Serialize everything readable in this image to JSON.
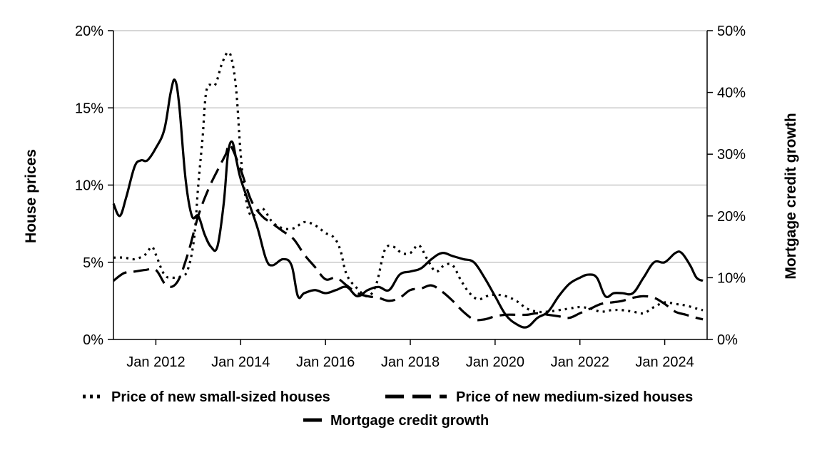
{
  "chart_data": {
    "type": "line",
    "title": "",
    "xlabel": "",
    "ylabel": "House prices",
    "y2label": "Mortgage credit growth",
    "ylim": [
      0,
      20
    ],
    "y2lim": [
      0,
      50
    ],
    "xlim": [
      2011.0,
      2025.0
    ],
    "yticks": [
      {
        "value": 0,
        "label": "0%"
      },
      {
        "value": 5,
        "label": "5%"
      },
      {
        "value": 10,
        "label": "10%"
      },
      {
        "value": 15,
        "label": "15%"
      },
      {
        "value": 20,
        "label": "20%"
      }
    ],
    "y2ticks": [
      {
        "value": 0,
        "label": "0%"
      },
      {
        "value": 10,
        "label": "10%"
      },
      {
        "value": 20,
        "label": "20%"
      },
      {
        "value": 30,
        "label": "30%"
      },
      {
        "value": 40,
        "label": "40%"
      },
      {
        "value": 50,
        "label": "50%"
      }
    ],
    "xticks": [
      {
        "value": 2012,
        "label": "Jan 2012"
      },
      {
        "value": 2014,
        "label": "Jan 2014"
      },
      {
        "value": 2016,
        "label": "Jan 2016"
      },
      {
        "value": 2018,
        "label": "Jan 2018"
      },
      {
        "value": 2020,
        "label": "Jan 2020"
      },
      {
        "value": 2022,
        "label": "Jan 2022"
      },
      {
        "value": 2024,
        "label": "Jan 2024"
      }
    ],
    "grid": true,
    "legend_position": "bottom",
    "series": [
      {
        "name": "Price of new small-sized houses",
        "axis": "left",
        "style": "dotted",
        "x": [
          2011.0,
          2011.25,
          2011.5,
          2011.75,
          2011.9,
          2012.0,
          2012.2,
          2012.4,
          2012.6,
          2012.75,
          2012.9,
          2013.0,
          2013.1,
          2013.2,
          2013.4,
          2013.55,
          2013.7,
          2013.8,
          2013.9,
          2014.0,
          2014.1,
          2014.25,
          2014.5,
          2014.75,
          2015.0,
          2015.25,
          2015.5,
          2015.75,
          2016.0,
          2016.2,
          2016.35,
          2016.5,
          2016.75,
          2017.0,
          2017.2,
          2017.4,
          2017.6,
          2017.8,
          2018.0,
          2018.2,
          2018.4,
          2018.6,
          2018.8,
          2019.0,
          2019.2,
          2019.4,
          2019.6,
          2019.8,
          2020.0,
          2020.25,
          2020.5,
          2020.75,
          2021.0,
          2021.25,
          2021.5,
          2021.75,
          2022.0,
          2022.25,
          2022.5,
          2022.75,
          2023.0,
          2023.25,
          2023.5,
          2023.75,
          2024.0,
          2024.25,
          2024.5,
          2024.75,
          2024.9
        ],
        "values": [
          5.3,
          5.3,
          5.2,
          5.5,
          6.0,
          5.5,
          4.2,
          4.0,
          4.1,
          4.5,
          6.5,
          10.0,
          13.0,
          16.2,
          16.5,
          17.8,
          18.6,
          18.0,
          16.0,
          12.0,
          9.5,
          8.0,
          8.5,
          7.6,
          7.2,
          7.2,
          7.6,
          7.4,
          6.9,
          6.6,
          5.8,
          4.2,
          3.3,
          2.8,
          3.6,
          5.8,
          6.0,
          5.6,
          5.6,
          6.1,
          5.2,
          4.4,
          4.8,
          4.8,
          3.8,
          3.0,
          2.6,
          2.8,
          2.9,
          2.8,
          2.5,
          2.0,
          1.8,
          1.8,
          1.9,
          2.0,
          2.1,
          2.0,
          1.8,
          1.9,
          1.9,
          1.8,
          1.7,
          2.1,
          2.4,
          2.3,
          2.2,
          2.0,
          1.9
        ]
      },
      {
        "name": "Price of new medium-sized houses",
        "axis": "left",
        "style": "dashed",
        "x": [
          2011.0,
          2011.25,
          2011.5,
          2011.75,
          2012.0,
          2012.25,
          2012.5,
          2012.75,
          2013.0,
          2013.25,
          2013.5,
          2013.65,
          2013.75,
          2014.0,
          2014.25,
          2014.5,
          2014.75,
          2015.0,
          2015.25,
          2015.5,
          2015.75,
          2016.0,
          2016.25,
          2016.5,
          2016.75,
          2017.0,
          2017.25,
          2017.5,
          2017.75,
          2018.0,
          2018.25,
          2018.5,
          2018.75,
          2019.0,
          2019.25,
          2019.5,
          2019.75,
          2020.0,
          2020.25,
          2020.5,
          2020.75,
          2021.0,
          2021.25,
          2021.5,
          2021.75,
          2022.0,
          2022.25,
          2022.5,
          2022.75,
          2023.0,
          2023.25,
          2023.5,
          2023.75,
          2024.0,
          2024.25,
          2024.5,
          2024.75,
          2024.9
        ],
        "values": [
          3.8,
          4.3,
          4.4,
          4.5,
          4.5,
          3.5,
          3.7,
          5.5,
          8.0,
          9.8,
          11.2,
          12.0,
          12.6,
          11.0,
          9.0,
          8.0,
          7.5,
          7.0,
          6.5,
          5.5,
          4.7,
          3.9,
          4.0,
          3.5,
          3.0,
          2.8,
          2.7,
          2.5,
          2.7,
          3.2,
          3.3,
          3.5,
          3.1,
          2.5,
          1.8,
          1.3,
          1.3,
          1.5,
          1.6,
          1.6,
          1.6,
          1.7,
          1.6,
          1.5,
          1.4,
          1.7,
          2.0,
          2.3,
          2.4,
          2.5,
          2.7,
          2.8,
          2.7,
          2.3,
          1.8,
          1.6,
          1.4,
          1.3
        ]
      },
      {
        "name": "Mortgage credit growth",
        "axis": "right",
        "style": "solid",
        "x": [
          2011.0,
          2011.15,
          2011.3,
          2011.5,
          2011.65,
          2011.8,
          2012.0,
          2012.2,
          2012.35,
          2012.45,
          2012.55,
          2012.7,
          2012.85,
          2013.0,
          2013.15,
          2013.3,
          2013.45,
          2013.6,
          2013.7,
          2013.8,
          2013.9,
          2014.0,
          2014.2,
          2014.4,
          2014.6,
          2014.75,
          2015.0,
          2015.2,
          2015.35,
          2015.5,
          2015.75,
          2016.0,
          2016.25,
          2016.5,
          2016.75,
          2017.0,
          2017.25,
          2017.5,
          2017.75,
          2018.0,
          2018.25,
          2018.5,
          2018.75,
          2019.0,
          2019.25,
          2019.5,
          2019.75,
          2020.0,
          2020.25,
          2020.5,
          2020.75,
          2021.0,
          2021.25,
          2021.5,
          2021.75,
          2022.0,
          2022.2,
          2022.4,
          2022.6,
          2022.8,
          2023.0,
          2023.25,
          2023.5,
          2023.75,
          2024.0,
          2024.25,
          2024.4,
          2024.6,
          2024.75,
          2024.9
        ],
        "values": [
          22,
          20,
          23,
          28,
          29,
          29,
          31,
          34,
          40,
          42,
          38,
          26,
          20,
          20,
          17,
          15,
          15,
          22,
          30,
          32,
          29,
          26,
          22,
          18,
          13,
          12,
          13,
          12,
          7,
          7.5,
          8,
          7.5,
          8,
          8.5,
          7,
          8,
          8.5,
          8,
          10.5,
          11,
          11.5,
          13,
          14,
          13.5,
          13,
          12.5,
          10,
          7,
          4,
          2.5,
          2,
          3.5,
          4.5,
          7,
          9,
          10,
          10.5,
          10,
          7,
          7.5,
          7.5,
          7.5,
          10,
          12.5,
          12.5,
          14,
          14,
          12,
          10,
          9.5
        ]
      }
    ]
  }
}
